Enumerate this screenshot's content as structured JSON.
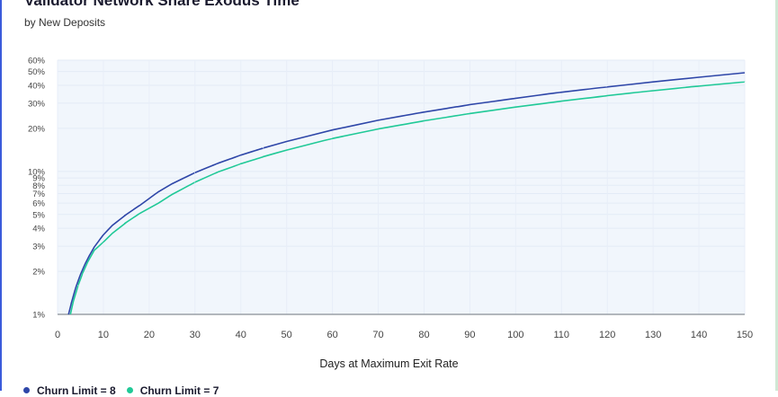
{
  "colors": {
    "accent": "#2e46a8",
    "secondary": "#20c997",
    "plot_bg": "#f1f6fc"
  },
  "chart_data": {
    "type": "line",
    "title": "Validator Network Share Exodus Time",
    "subtitle": "by New Deposits",
    "xlabel": "Days at Maximum Exit Rate",
    "ylabel": "",
    "y_scale": "log",
    "xlim": [
      0,
      150
    ],
    "ylim": [
      1,
      60
    ],
    "x_ticks": [
      "0",
      "10",
      "20",
      "30",
      "40",
      "50",
      "60",
      "70",
      "80",
      "90",
      "100",
      "110",
      "120",
      "130",
      "140",
      "150"
    ],
    "y_ticks": [
      "1%",
      "2%",
      "3%",
      "4%",
      "5%",
      "6%",
      "7%",
      "8%",
      "9%",
      "10%",
      "20%",
      "30%",
      "40%",
      "50%",
      "60%"
    ],
    "legend_position": "bottom-left",
    "series": [
      {
        "name": "Churn Limit = 8",
        "color": "#2e46a8",
        "x": [
          2.4,
          3,
          4,
          5,
          6,
          7,
          8,
          10,
          12,
          15,
          18,
          22,
          25,
          30,
          35,
          40,
          45,
          50,
          60,
          70,
          80,
          90,
          100,
          110,
          120,
          130,
          140,
          150
        ],
        "y": [
          1.0,
          1.2,
          1.55,
          1.9,
          2.25,
          2.6,
          2.95,
          3.6,
          4.2,
          5.0,
          5.8,
          7.2,
          8.2,
          9.8,
          11.4,
          13.0,
          14.6,
          16.2,
          19.5,
          22.8,
          26.0,
          29.3,
          32.5,
          35.8,
          39.0,
          42.3,
          45.6,
          49.0
        ]
      },
      {
        "name": "Churn Limit = 7",
        "color": "#20c997",
        "x": [
          2.8,
          3.5,
          4.5,
          5.5,
          6.5,
          8,
          10,
          12,
          15,
          18,
          22,
          25,
          30,
          35,
          40,
          45,
          50,
          60,
          70,
          80,
          90,
          100,
          110,
          120,
          130,
          140,
          150
        ],
        "y": [
          1.0,
          1.25,
          1.6,
          1.95,
          2.3,
          2.8,
          3.2,
          3.7,
          4.4,
          5.1,
          6.0,
          6.9,
          8.4,
          9.9,
          11.3,
          12.7,
          14.1,
          17.0,
          19.8,
          22.6,
          25.4,
          28.2,
          31.0,
          33.9,
          36.7,
          39.5,
          42.3
        ]
      }
    ]
  }
}
